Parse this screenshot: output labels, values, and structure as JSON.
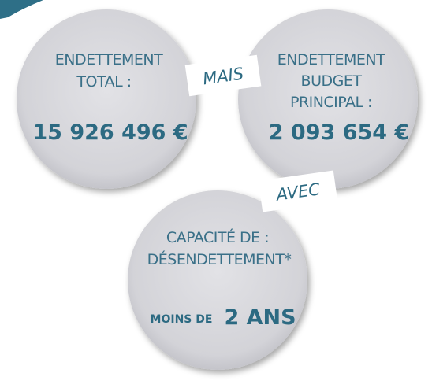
{
  "circles": [
    {
      "label": [
        "ENDETTEMENT",
        "TOTAL :"
      ],
      "value": "15 926 496 €"
    },
    {
      "label": [
        "ENDETTEMENT",
        "BUDGET",
        "PRINCIPAL :"
      ],
      "value": "2 093 654 €"
    },
    {
      "label": [
        "CAPACITÉ DE :",
        "DÉSENDETTEMENT*"
      ],
      "value_prefix": "MOINS DE",
      "value": "2 ANS"
    }
  ],
  "connectors": [
    "MAIS",
    "AVEC"
  ]
}
